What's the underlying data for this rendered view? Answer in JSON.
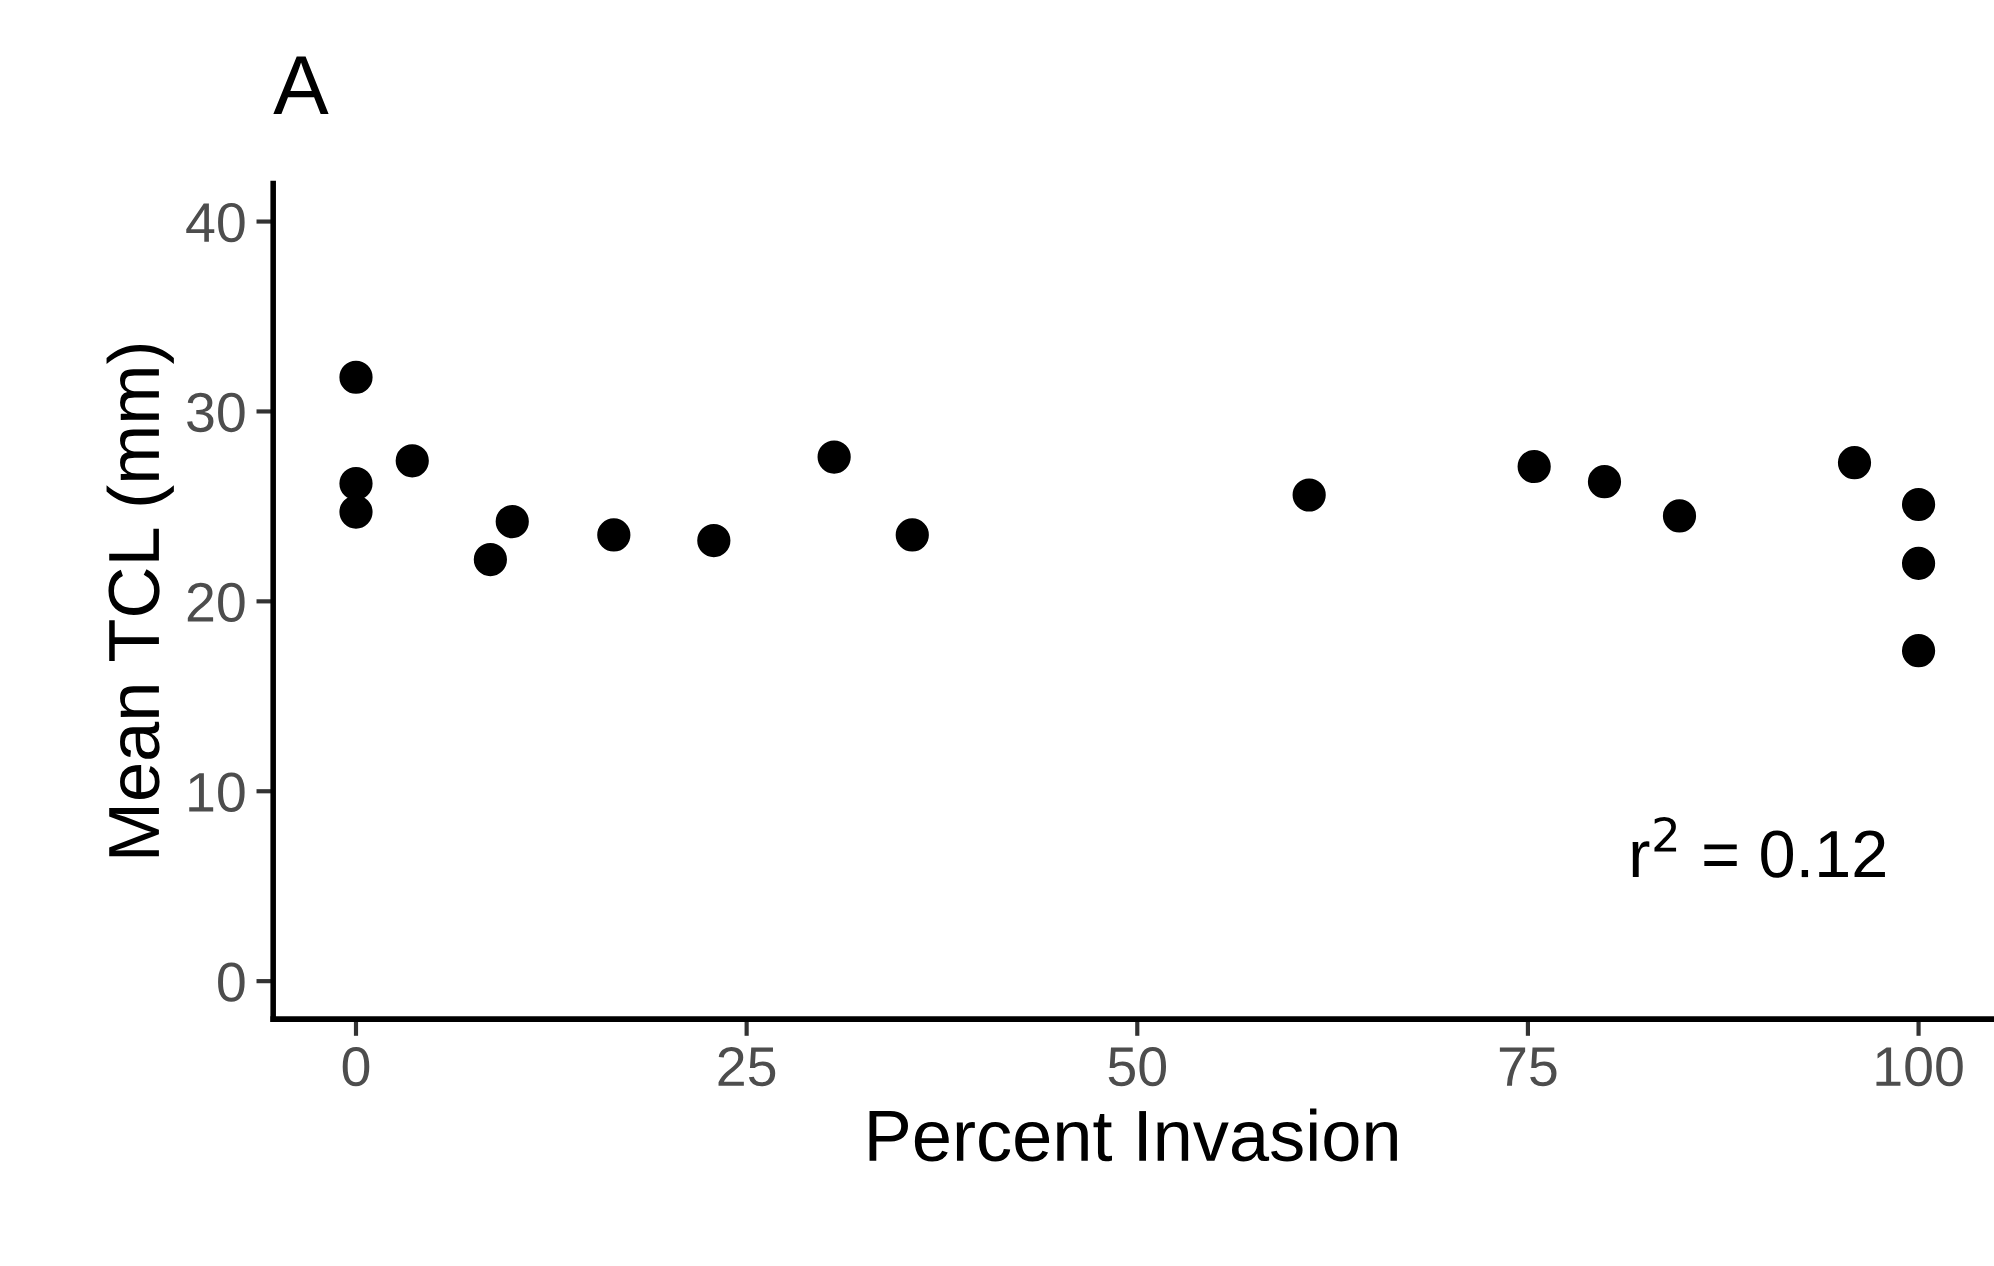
{
  "chart_data": {
    "type": "scatter",
    "title": "A",
    "xlabel": "Percent Invasion",
    "ylabel": "Mean TCL (mm)",
    "x": [
      0,
      0,
      0,
      3.6,
      8.6,
      10,
      16.5,
      22.9,
      30.6,
      35.6,
      61,
      75.4,
      79.9,
      84.7,
      95.9,
      100,
      100,
      100
    ],
    "values": [
      31.8,
      26.2,
      24.7,
      27.4,
      22.2,
      24.2,
      23.5,
      23.2,
      27.6,
      23.5,
      25.6,
      27.1,
      26.3,
      24.5,
      27.3,
      25.1,
      22.0,
      17.4
    ],
    "color": "#000000",
    "marker": "circle",
    "xlim": [
      -5.3,
      104.7
    ],
    "ylim": [
      -2,
      42
    ],
    "xticks": [
      0,
      25,
      50,
      75,
      100
    ],
    "yticks": [
      0,
      10,
      20,
      30,
      40
    ],
    "grid": false,
    "legend": false,
    "annotations": [
      "r$^{2}$ = 0.12"
    ]
  }
}
